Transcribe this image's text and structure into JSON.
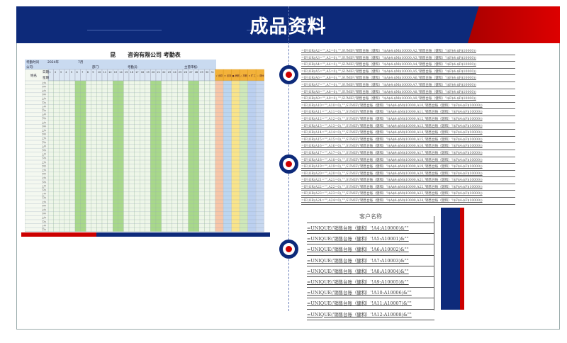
{
  "header": {
    "title": "成品资料"
  },
  "colors": {
    "navy": "#0d2a7a",
    "red": "#cc0000",
    "weekend": "#a8d88a"
  },
  "attendance": {
    "title": "昆      咨询有限公司 考勤表",
    "labels": {
      "period": "考勤时间",
      "year": "2024年",
      "month": "7月",
      "company": "公司:",
      "dept": "部门:",
      "attendance_officer": "考勤员:",
      "supervisor": "主管审核:",
      "name": "姓名",
      "date": "日期",
      "weekday": "星期",
      "am": "上午",
      "pm": "下午"
    },
    "summary_headers": [
      "√ 出勤",
      "○ 迟到",
      "● 病假",
      "△ 事假",
      "× 旷工",
      "☆ 调休"
    ]
  },
  "formulas": [
    "=IF(OR(A2=\"\",A2=0),\"\",SUMIF('销售台账（健和）'!$A$4:$M$10000,A2,'销售台账（健和）'!$F$4:$F$10000))",
    "=IF(OR(A3=\"\",A3=0),\"\",SUMIF('销售台账（健和）'!$A$4:$M$10000,A3,'销售台账（健和）'!$F$4:$F$10000))",
    "=IF(OR(A4=\"\",A4=0),\"\",SUMIF('销售台账（健和）'!$A$4:$M$10000,A4,'销售台账（健和）'!$F$4:$F$10000))",
    "=IF(OR(A5=\"\",A5=0),\"\",SUMIF('销售台账（健和）'!$A$4:$M$10000,A5,'销售台账（健和）'!$F$4:$F$10000))",
    "=IF(OR(A6=\"\",A6=0),\"\",SUMIF('销售台账（健和）'!$A$4:$M$10000,A6,'销售台账（健和）'!$F$4:$F$10000))",
    "=IF(OR(A7=\"\",A7=0),\"\",SUMIF('销售台账（健和）'!$A$4:$M$10000,A7,'销售台账（健和）'!$F$4:$F$10000))",
    "=IF(OR(A8=\"\",A8=0),\"\",SUMIF('销售台账（健和）'!$A$4:$M$10000,A8,'销售台账（健和）'!$F$4:$F$10000))",
    "=IF(OR(A9=\"\",A9=0),\"\",SUMIF('销售台账（健和）'!$A$4:$M$10000,A9,'销售台账（健和）'!$F$4:$F$10000))",
    "=IF(OR(A10=\"\",A10=0),\"\",SUMIF('销售台账（健和）'!$A$4:$M$10000,A10,'销售台账（健和）'!$F$4:$F$10000))",
    "=IF(OR(A11=\"\",A11=0),\"\",SUMIF('销售台账（健和）'!$A$4:$M$10000,A11,'销售台账（健和）'!$F$4:$F$10000))",
    "=IF(OR(A12=\"\",A12=0),\"\",SUMIF('销售台账（健和）'!$A$4:$M$10000,A12,'销售台账（健和）'!$F$4:$F$10000))",
    "=IF(OR(A13=\"\",A13=0),\"\",SUMIF('销售台账（健和）'!$A$4:$M$10000,A13,'销售台账（健和）'!$F$4:$F$10000))",
    "=IF(OR(A14=\"\",A14=0),\"\",SUMIF('销售台账（健和）'!$A$4:$M$10000,A14,'销售台账（健和）'!$F$4:$F$10000))",
    "=IF(OR(A15=\"\",A15=0),\"\",SUMIF('销售台账（健和）'!$A$4:$M$10000,A15,'销售台账（健和）'!$F$4:$F$10000))",
    "=IF(OR(A16=\"\",A16=0),\"\",SUMIF('销售台账（健和）'!$A$4:$M$10000,A16,'销售台账（健和）'!$F$4:$F$10000))",
    "=IF(OR(A17=\"\",A17=0),\"\",SUMIF('销售台账（健和）'!$A$4:$M$10000,A17,'销售台账（健和）'!$F$4:$F$10000))",
    "=IF(OR(A18=\"\",A18=0),\"\",SUMIF('销售台账（健和）'!$A$4:$M$10000,A18,'销售台账（健和）'!$F$4:$F$10000))",
    "=IF(OR(A19=\"\",A19=0),\"\",SUMIF('销售台账（健和）'!$A$4:$M$10000,A19,'销售台账（健和）'!$F$4:$F$10000))",
    "=IF(OR(A20=\"\",A20=0),\"\",SUMIF('销售台账（健和）'!$A$4:$M$10000,A20,'销售台账（健和）'!$F$4:$F$10000))",
    "=IF(OR(A21=\"\",A21=0),\"\",SUMIF('销售台账（健和）'!$A$4:$M$10000,A21,'销售台账（健和）'!$F$4:$F$10000))",
    "=IF(OR(A22=\"\",A22=0),\"\",SUMIF('销售台账（健和）'!$A$4:$M$10000,A22,'销售台账（健和）'!$F$4:$F$10000))",
    "=IF(OR(A23=\"\",A23=0),\"\",SUMIF('销售台账（健和）'!$A$4:$M$10000,A23,'销售台账（健和）'!$F$4:$F$10000))",
    "=IF(OR(A24=\"\",A24=0),\"\",SUMIF('销售台账（健和）'!$A$4:$M$10000,A24,'销售台账（健和）'!$F$4:$F$10000))"
  ],
  "unique": {
    "header": "客户名称",
    "rows": [
      "=UNIQUE('销售台账（健和）'!A4:A10000)&\"\"",
      "=UNIQUE('销售台账（健和）'!A5:A10001)&\"\"",
      "=UNIQUE('销售台账（健和）'!A6:A10002)&\"\"",
      "=UNIQUE('销售台账（健和）'!A7:A10003)&\"\"",
      "=UNIQUE('销售台账（健和）'!A8:A10004)&\"\"",
      "=UNIQUE('销售台账（健和）'!A9:A10005)&\"\"",
      "=UNIQUE('销售台账（健和）'!A10:A10006)&\"\"",
      "=UNIQUE('销售台账（健和）'!A11:A10007)&\"\"",
      "=UNIQUE('销售台账（健和）'!A12:A10008)&\"\""
    ]
  }
}
